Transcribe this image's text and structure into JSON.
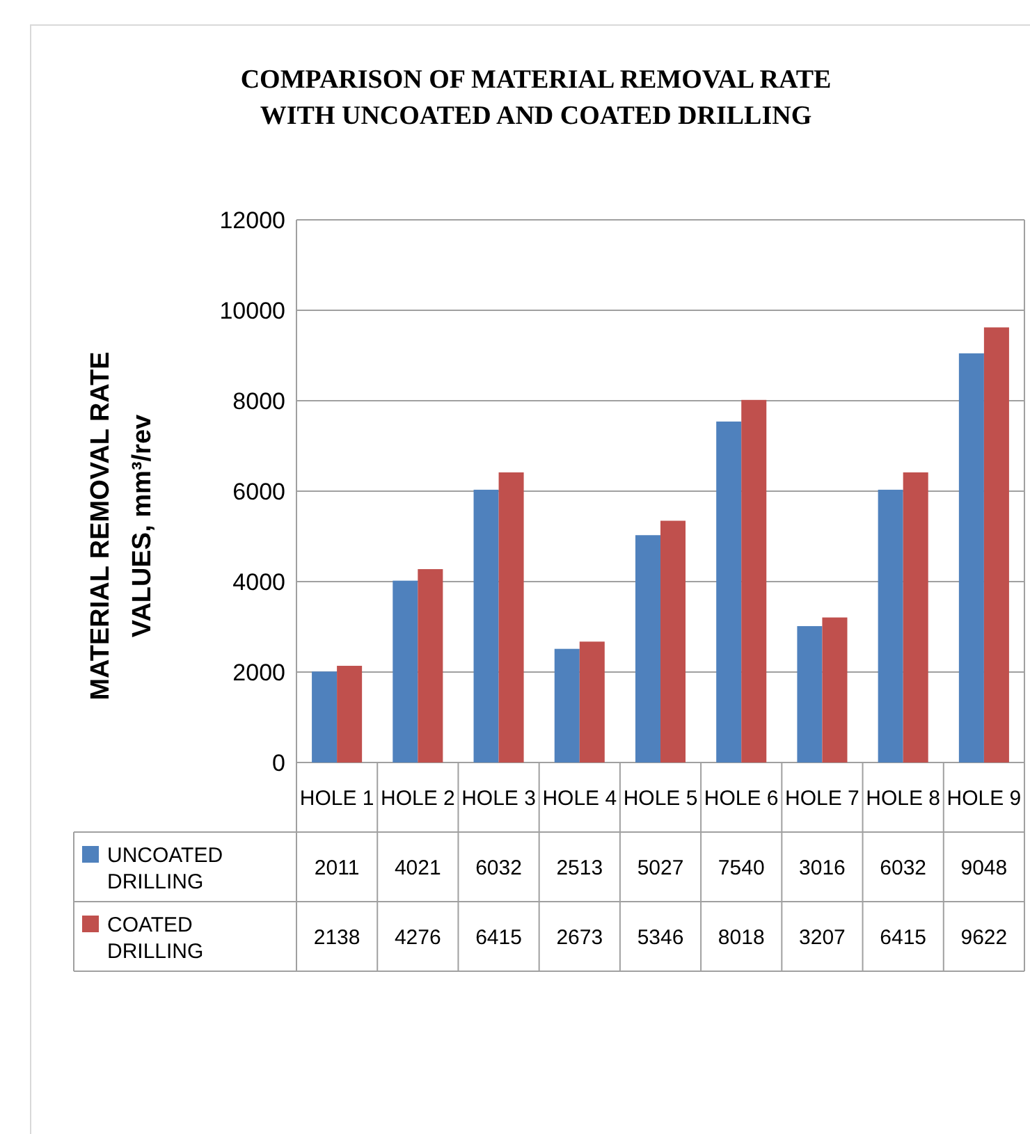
{
  "chart_data": {
    "type": "bar",
    "title": "COMPARISON OF MATERIAL REMOVAL RATE WITH UNCOATED AND COATED DRILLING",
    "ylabel": "MATERIAL REMOVAL RATE VALUES, mm³/rev",
    "categories": [
      "HOLE 1",
      "HOLE 2",
      "HOLE 3",
      "HOLE 4",
      "HOLE 5",
      "HOLE 6",
      "HOLE 7",
      "HOLE 8",
      "HOLE 9"
    ],
    "series": [
      {
        "name": "UNCOATED DRILLING",
        "color": "#4f81bd",
        "values": [
          2011,
          4021,
          6032,
          2513,
          5027,
          7540,
          3016,
          6032,
          9048
        ]
      },
      {
        "name": "COATED DRILLING",
        "color": "#c0504d",
        "values": [
          2138,
          4276,
          6415,
          2673,
          5346,
          8018,
          3207,
          6415,
          9622
        ]
      }
    ],
    "ylim": [
      0,
      12000
    ],
    "yticks": [
      0,
      2000,
      4000,
      6000,
      8000,
      10000,
      12000
    ],
    "grid": "y",
    "data_labels": true,
    "legend": "bottom left"
  }
}
